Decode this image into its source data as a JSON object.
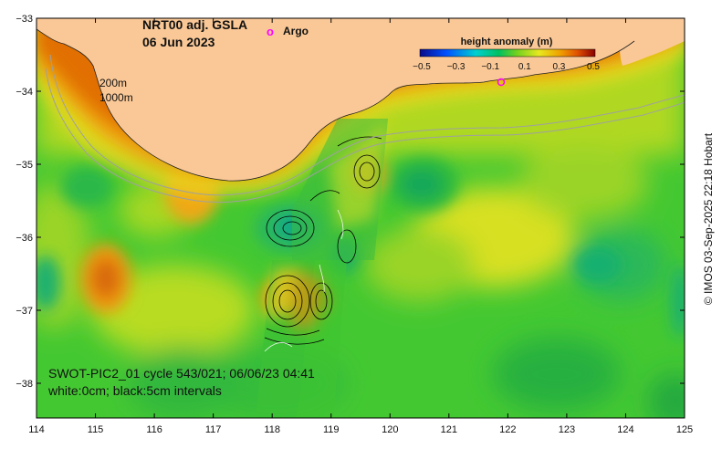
{
  "map": {
    "title_line1": "NRT00 adj. GSLA",
    "title_line2": "06 Jun 2023",
    "legend_marker": "o",
    "legend_label": "Argo",
    "depth_label_1": "200m",
    "depth_label_2": "1000m",
    "swot_line1": "SWOT-PIC2_01 cycle 543/021; 06/06/23 04:41",
    "swot_line2": "white:0cm; black:5cm intervals",
    "copyright": "© IMOS 03-Sep-2025 22:18 Hobart",
    "colors": {
      "land": "#FAC896",
      "argo": "#FF00FF",
      "isobath": "#A0A0A0"
    }
  },
  "colorbar": {
    "title": "height anomaly (m)",
    "tick_labels": [
      "−0.5",
      "−0.3",
      "−0.1",
      "0.1",
      "0.3",
      "0.5"
    ]
  },
  "axes": {
    "x_ticks": [
      "114",
      "115",
      "116",
      "117",
      "118",
      "119",
      "120",
      "121",
      "122",
      "123",
      "124",
      "125"
    ],
    "y_ticks": [
      "−33",
      "−34",
      "−35",
      "−36",
      "−37",
      "−38"
    ]
  }
}
